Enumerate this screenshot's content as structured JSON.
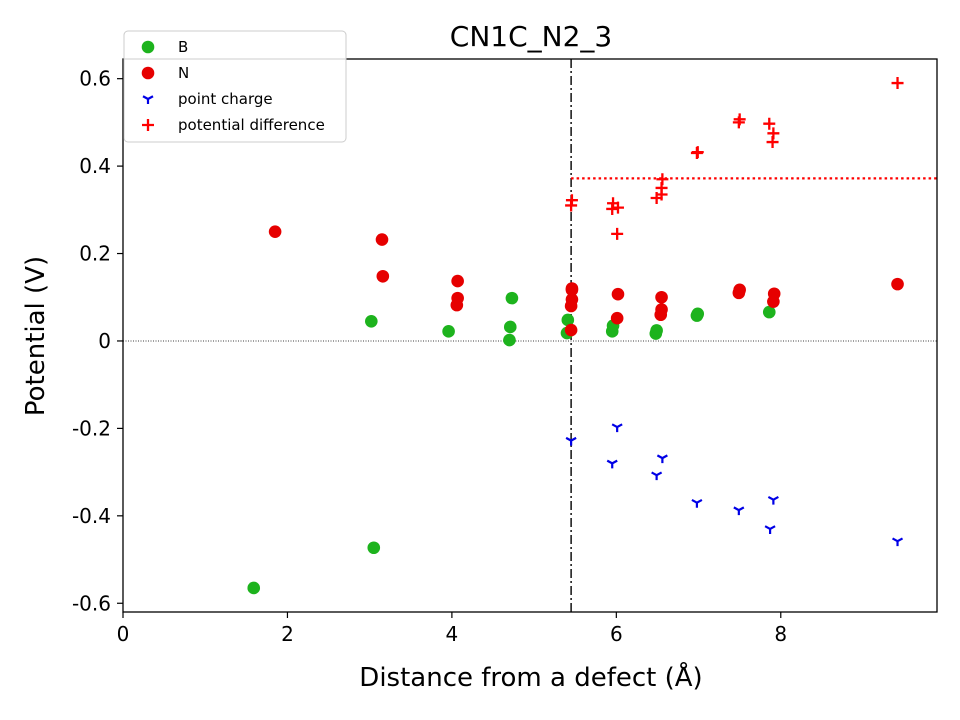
{
  "chart_data": {
    "type": "scatter",
    "title": "CN1C_N2_3",
    "xlabel": "Distance from a defect (Å)",
    "ylabel": "Potential (V)",
    "xlim": [
      0,
      9.9
    ],
    "ylim": [
      -0.62,
      0.645
    ],
    "xticks": [
      0,
      2,
      4,
      6,
      8
    ],
    "yticks": [
      {
        "value": -0.6,
        "label": "-0.6"
      },
      {
        "value": -0.4,
        "label": "-0.4"
      },
      {
        "value": -0.2,
        "label": "-0.2"
      },
      {
        "value": 0,
        "label": "0"
      },
      {
        "value": 0.2,
        "label": "0.2"
      },
      {
        "value": 0.4,
        "label": "0.4"
      },
      {
        "value": 0.6,
        "label": "0.6"
      }
    ],
    "grid": false,
    "legend_position": "top-left",
    "reference_lines": {
      "zero_line": 0,
      "vertical_dashdot_x": 5.45,
      "average_dotted": {
        "x_start": 5.45,
        "y": 0.372
      }
    },
    "series": [
      {
        "name": "B",
        "marker": "circle",
        "color": "#1db31d",
        "points": [
          [
            1.59,
            -0.565
          ],
          [
            3.02,
            0.045
          ],
          [
            3.05,
            -0.473
          ],
          [
            3.96,
            0.022
          ],
          [
            4.7,
            0.002
          ],
          [
            4.71,
            0.032
          ],
          [
            4.73,
            0.098
          ],
          [
            5.4,
            0.018
          ],
          [
            5.41,
            0.048
          ],
          [
            5.95,
            0.022
          ],
          [
            5.96,
            0.035
          ],
          [
            6.48,
            0.017
          ],
          [
            6.49,
            0.024
          ],
          [
            6.98,
            0.058
          ],
          [
            6.99,
            0.062
          ],
          [
            7.86,
            0.066
          ]
        ]
      },
      {
        "name": "N",
        "marker": "circle",
        "color": "#e60000",
        "points": [
          [
            1.85,
            0.25
          ],
          [
            3.15,
            0.232
          ],
          [
            3.16,
            0.148
          ],
          [
            4.06,
            0.082
          ],
          [
            4.07,
            0.098
          ],
          [
            4.07,
            0.137
          ],
          [
            5.45,
            0.025
          ],
          [
            5.45,
            0.08
          ],
          [
            5.46,
            0.095
          ],
          [
            5.46,
            0.117
          ],
          [
            5.46,
            0.12
          ],
          [
            6.01,
            0.052
          ],
          [
            6.02,
            0.107
          ],
          [
            6.54,
            0.06
          ],
          [
            6.55,
            0.072
          ],
          [
            6.55,
            0.1
          ],
          [
            7.49,
            0.11
          ],
          [
            7.5,
            0.117
          ],
          [
            7.91,
            0.09
          ],
          [
            7.92,
            0.108
          ],
          [
            9.42,
            0.13
          ]
        ]
      },
      {
        "name": "point charge",
        "marker": "tri_down",
        "color": "#0000e6",
        "points": [
          [
            5.45,
            -0.228
          ],
          [
            5.95,
            -0.28
          ],
          [
            6.01,
            -0.197
          ],
          [
            6.49,
            -0.307
          ],
          [
            6.56,
            -0.268
          ],
          [
            6.98,
            -0.37
          ],
          [
            7.49,
            -0.387
          ],
          [
            7.87,
            -0.43
          ],
          [
            7.91,
            -0.363
          ],
          [
            9.42,
            -0.458
          ]
        ]
      },
      {
        "name": "potential difference",
        "marker": "plus",
        "color": "#ff0000",
        "points": [
          [
            5.45,
            0.31
          ],
          [
            5.46,
            0.322
          ],
          [
            5.95,
            0.302
          ],
          [
            5.96,
            0.315
          ],
          [
            6.01,
            0.245
          ],
          [
            6.02,
            0.305
          ],
          [
            6.49,
            0.327
          ],
          [
            6.55,
            0.335
          ],
          [
            6.55,
            0.35
          ],
          [
            6.56,
            0.37
          ],
          [
            6.98,
            0.43
          ],
          [
            6.99,
            0.432
          ],
          [
            7.49,
            0.5
          ],
          [
            7.5,
            0.507
          ],
          [
            7.86,
            0.497
          ],
          [
            7.9,
            0.455
          ],
          [
            7.91,
            0.475
          ],
          [
            9.42,
            0.59
          ]
        ]
      }
    ]
  }
}
